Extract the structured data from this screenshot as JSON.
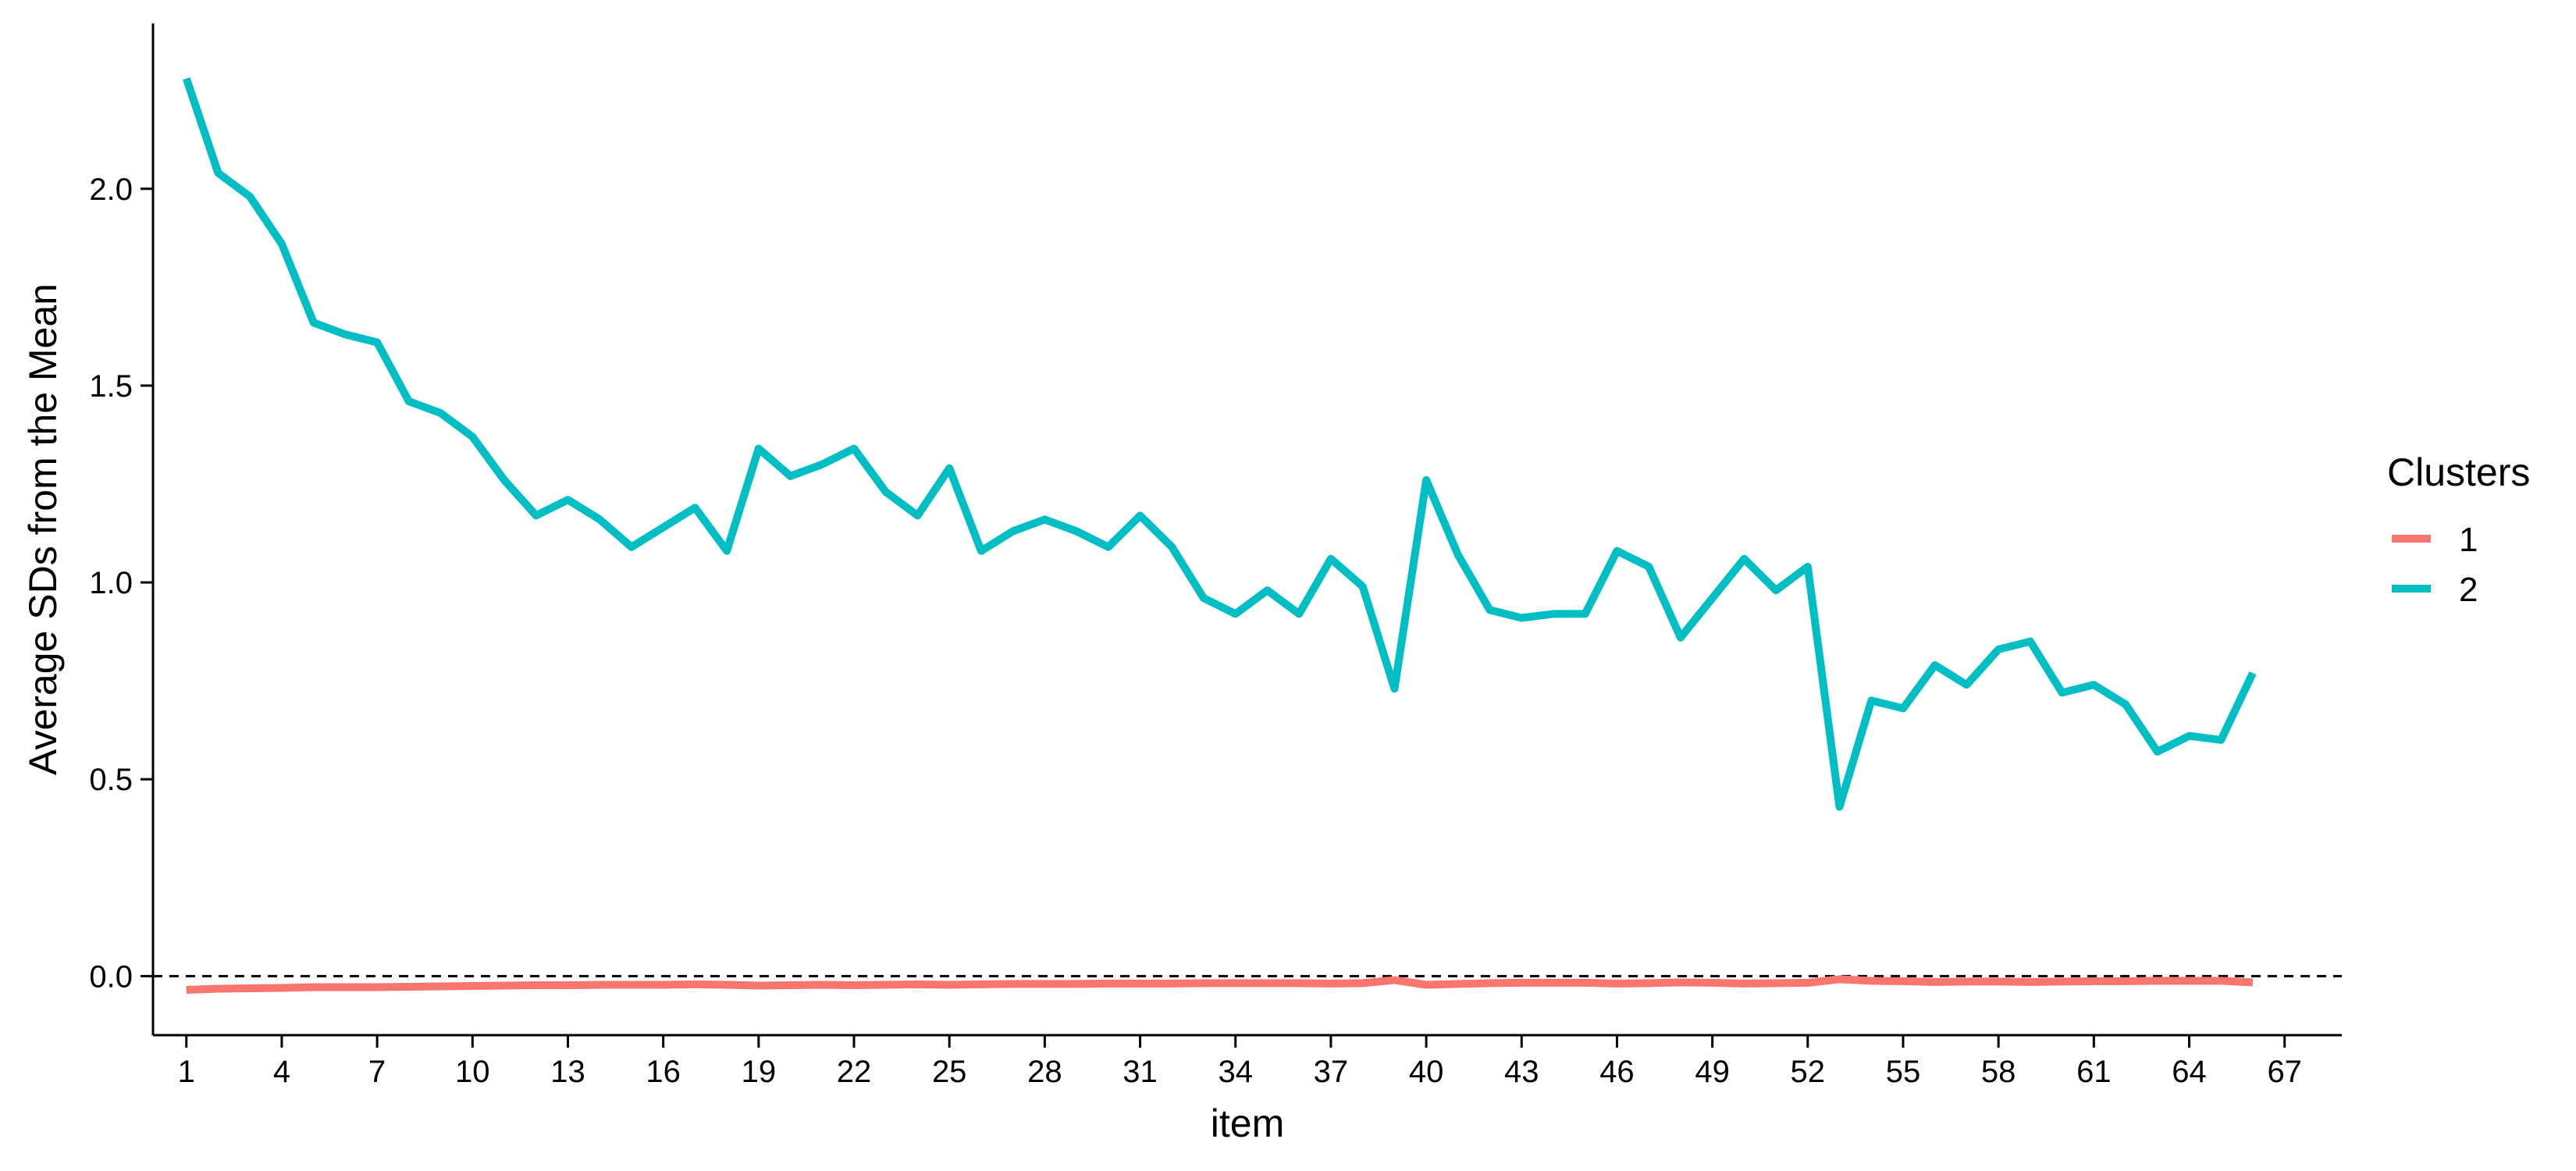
{
  "chart_data": {
    "type": "line",
    "title": "",
    "xlabel": "item",
    "ylabel": "Average SDs from the Mean",
    "xlim": [
      -0.05,
      68.8
    ],
    "ylim": [
      -0.15,
      2.42
    ],
    "x_ticks": [
      1,
      4,
      7,
      10,
      13,
      16,
      19,
      22,
      25,
      28,
      31,
      34,
      37,
      40,
      43,
      46,
      49,
      52,
      55,
      58,
      61,
      64,
      67
    ],
    "y_ticks": [
      0.0,
      0.5,
      1.0,
      1.5,
      2.0
    ],
    "y_tick_labels": [
      "0.0",
      "0.5",
      "1.0",
      "1.5",
      "2.0"
    ],
    "reference_line": {
      "y": 0,
      "style": "dashed"
    },
    "grid": false,
    "legend": {
      "title": "Clusters",
      "position": "right"
    },
    "x": [
      1,
      2,
      3,
      4,
      5,
      6,
      7,
      8,
      9,
      10,
      11,
      12,
      13,
      14,
      15,
      16,
      17,
      18,
      19,
      20,
      21,
      22,
      23,
      24,
      25,
      26,
      27,
      28,
      29,
      30,
      31,
      32,
      33,
      34,
      35,
      36,
      37,
      38,
      39,
      40,
      41,
      42,
      43,
      44,
      45,
      46,
      47,
      48,
      49,
      50,
      51,
      52,
      53,
      54,
      55,
      56,
      57,
      58,
      59,
      60,
      61,
      62,
      63,
      64,
      65,
      66
    ],
    "series": [
      {
        "name": "1",
        "color": "#F8766D",
        "values": [
          -0.035,
          -0.032,
          -0.031,
          -0.03,
          -0.028,
          -0.028,
          -0.028,
          -0.027,
          -0.026,
          -0.025,
          -0.024,
          -0.023,
          -0.023,
          -0.022,
          -0.022,
          -0.022,
          -0.021,
          -0.022,
          -0.024,
          -0.023,
          -0.022,
          -0.023,
          -0.022,
          -0.021,
          -0.022,
          -0.021,
          -0.02,
          -0.02,
          -0.02,
          -0.019,
          -0.019,
          -0.019,
          -0.018,
          -0.018,
          -0.018,
          -0.018,
          -0.019,
          -0.018,
          -0.01,
          -0.022,
          -0.02,
          -0.018,
          -0.017,
          -0.017,
          -0.017,
          -0.019,
          -0.018,
          -0.016,
          -0.017,
          -0.019,
          -0.018,
          -0.017,
          -0.008,
          -0.012,
          -0.013,
          -0.015,
          -0.014,
          -0.014,
          -0.015,
          -0.014,
          -0.013,
          -0.013,
          -0.012,
          -0.012,
          -0.012,
          -0.016
        ]
      },
      {
        "name": "2",
        "color": "#00BFC4",
        "values": [
          2.28,
          2.04,
          1.98,
          1.86,
          1.66,
          1.63,
          1.61,
          1.46,
          1.43,
          1.37,
          1.26,
          1.17,
          1.21,
          1.16,
          1.09,
          1.14,
          1.19,
          1.08,
          1.34,
          1.27,
          1.3,
          1.34,
          1.23,
          1.17,
          1.29,
          1.08,
          1.13,
          1.16,
          1.13,
          1.09,
          1.17,
          1.09,
          0.96,
          0.92,
          0.98,
          0.92,
          1.06,
          0.99,
          0.73,
          1.26,
          1.07,
          0.93,
          0.91,
          0.92,
          0.92,
          1.08,
          1.04,
          0.86,
          0.96,
          1.06,
          0.98,
          1.04,
          0.43,
          0.7,
          0.68,
          0.79,
          0.74,
          0.83,
          0.85,
          0.72,
          0.74,
          0.69,
          0.57,
          0.61,
          0.6,
          0.77
        ]
      }
    ]
  }
}
